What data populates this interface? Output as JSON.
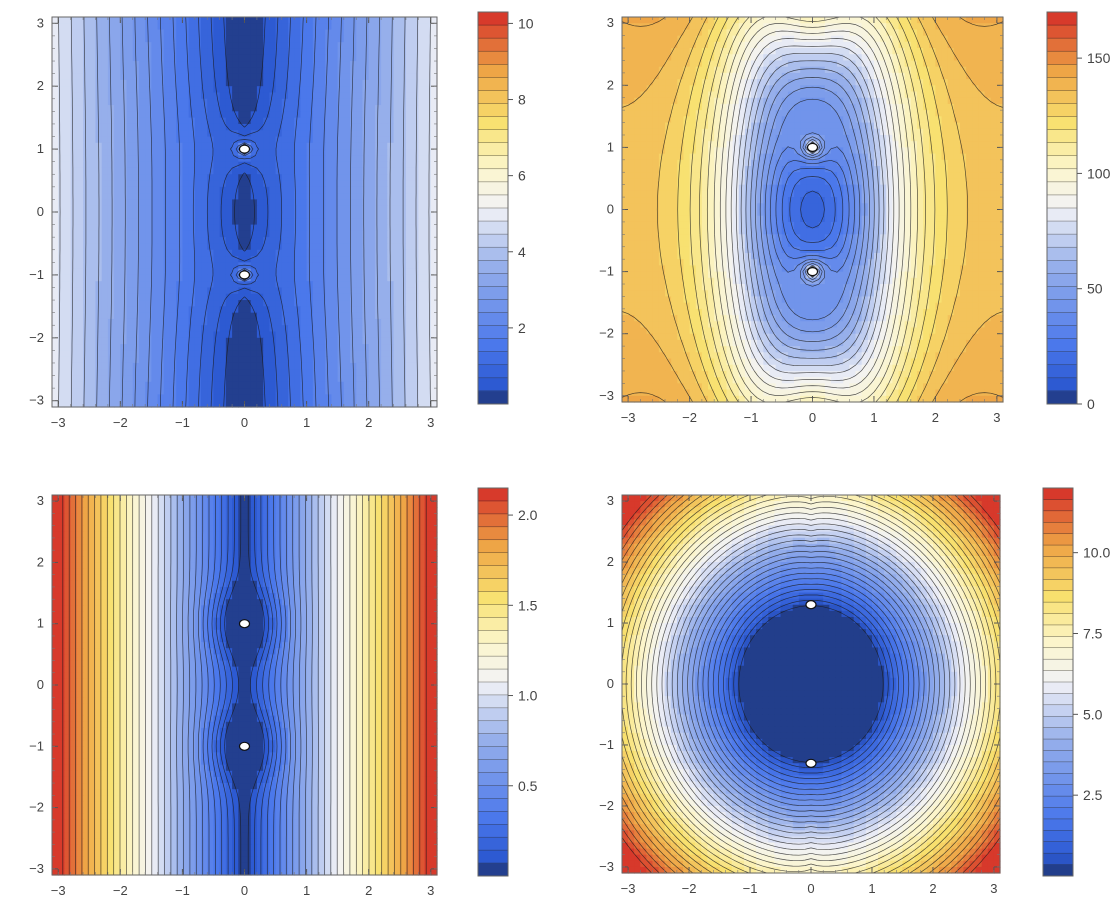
{
  "chart_data": [
    {
      "type": "contour",
      "title": "",
      "xlabel": "",
      "ylabel": "",
      "xlim": [
        -3.1,
        3.1
      ],
      "ylim": [
        -3.1,
        3.1
      ],
      "x_ticks": [
        "-3",
        "-2",
        "-1",
        "0",
        "1",
        "2",
        "3"
      ],
      "y_ticks": [
        "-3",
        "-2",
        "-1",
        "0",
        "1",
        "2",
        "3"
      ],
      "legend": "colorbar-right",
      "colorbar": {
        "range": [
          0,
          10.3
        ],
        "ticks": [
          2,
          4,
          6,
          8,
          10
        ],
        "tick_labels": [
          "2",
          "4",
          "6",
          "8",
          "10"
        ]
      },
      "contour_levels": 30,
      "field": "potential",
      "palette": "blue-white-yellow-red",
      "special_points": [
        [
          0,
          1
        ],
        [
          0,
          -1
        ]
      ]
    },
    {
      "type": "contour",
      "title": "",
      "xlabel": "",
      "ylabel": "",
      "xlim": [
        -3.1,
        3.1
      ],
      "ylim": [
        -3.1,
        3.1
      ],
      "x_ticks": [
        "-3",
        "-2",
        "-1",
        "0",
        "1",
        "2",
        "3"
      ],
      "y_ticks": [
        "-3",
        "-2",
        "-1",
        "0",
        "1",
        "2",
        "3"
      ],
      "legend": "colorbar-right",
      "colorbar": {
        "range": [
          0,
          170
        ],
        "ticks": [
          0,
          50,
          100,
          150
        ],
        "tick_labels": [
          "0",
          "50",
          "100",
          "150"
        ]
      },
      "contour_levels": 30,
      "field": "lobes",
      "palette": "blue-white-yellow-red",
      "special_points": [
        [
          0,
          1
        ],
        [
          0,
          -1
        ]
      ]
    },
    {
      "type": "contour",
      "title": "",
      "xlabel": "",
      "ylabel": "",
      "xlim": [
        -3.1,
        3.1
      ],
      "ylim": [
        -3.1,
        3.1
      ],
      "x_ticks": [
        "-3",
        "-2",
        "-1",
        "0",
        "1",
        "2",
        "3"
      ],
      "y_ticks": [
        "-3",
        "-2",
        "-1",
        "0",
        "1",
        "2",
        "3"
      ],
      "legend": "colorbar-right",
      "colorbar": {
        "range": [
          0,
          2.15
        ],
        "ticks": [
          0.5,
          1.0,
          1.5,
          2.0
        ],
        "tick_labels": [
          "0.5",
          "1.0",
          "1.5",
          "2.0"
        ]
      },
      "contour_levels": 30,
      "field": "absx",
      "palette": "blue-white-yellow-red",
      "special_points": [
        [
          0,
          1
        ],
        [
          0,
          -1
        ]
      ]
    },
    {
      "type": "contour",
      "title": "",
      "xlabel": "",
      "ylabel": "",
      "xlim": [
        -3.1,
        3.1
      ],
      "ylim": [
        -3.1,
        3.1
      ],
      "x_ticks": [
        "-3",
        "-2",
        "-1",
        "0",
        "1",
        "2",
        "3"
      ],
      "y_ticks": [
        "-3",
        "-2",
        "-1",
        "0",
        "1",
        "2",
        "3"
      ],
      "legend": "colorbar-right",
      "colorbar": {
        "range": [
          0,
          12
        ],
        "ticks": [
          2.5,
          5.0,
          7.5,
          10.0
        ],
        "tick_labels": [
          "2.5",
          "5.0",
          "7.5",
          "10.0"
        ]
      },
      "contour_levels": 34,
      "field": "radial",
      "palette": "blue-white-yellow-red",
      "special_points": [
        [
          0,
          1.3
        ],
        [
          0,
          -1.3
        ]
      ]
    }
  ]
}
